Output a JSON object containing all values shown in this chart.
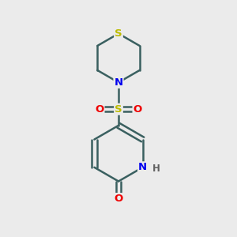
{
  "background_color": "#ebebeb",
  "atom_colors": {
    "C": "#3a3a3a",
    "N": "#0000ee",
    "O": "#ee0000",
    "S_thio": "#bbbb00",
    "S_sulfonyl": "#bbbb00",
    "H": "#606060"
  },
  "bond_color": "#3a6060",
  "line_width": 1.8,
  "figsize": [
    3.0,
    3.0
  ],
  "dpi": 100,
  "xlim": [
    0,
    10
  ],
  "ylim": [
    0,
    10
  ]
}
